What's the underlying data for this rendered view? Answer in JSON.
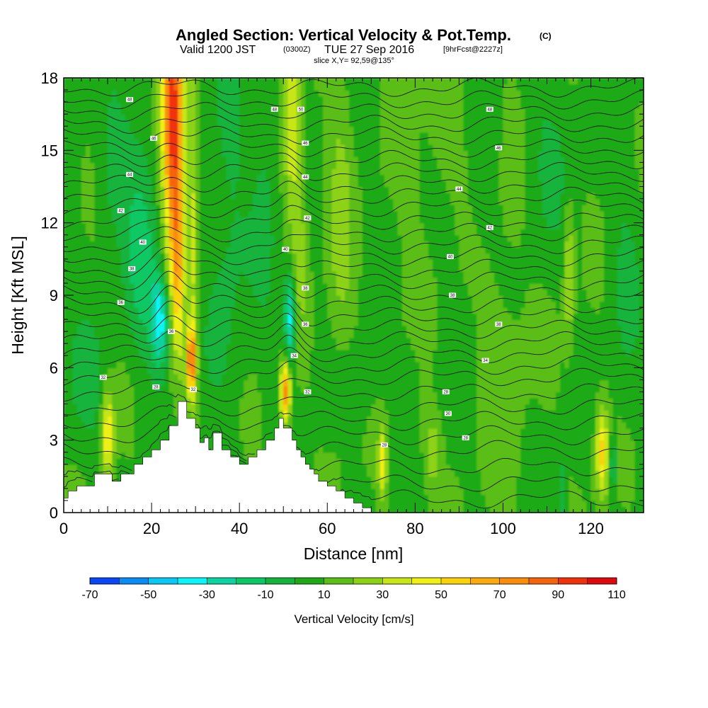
{
  "title": {
    "main": "Angled Section: Vertical Velocity & Pot.Temp.",
    "unit": "(C)",
    "valid_a": "Valid 1200 JST",
    "valid_b": "(0300Z)",
    "valid_c": "TUE 27 Sep 2016",
    "valid_d": "[9hrFcst@2227z]",
    "slice": "slice X,Y= 92,59@135°"
  },
  "colors": {
    "scale": [
      "#0a0af0",
      "#0a46f5",
      "#0a8cf5",
      "#0ac8f5",
      "#0af5f5",
      "#0ad2a0",
      "#0ac864",
      "#14b43c",
      "#1eaa14",
      "#5abe14",
      "#8cd214",
      "#c8e614",
      "#f0f014",
      "#fad20a",
      "#faaa0a",
      "#fa8c0a",
      "#f5640a",
      "#f0320a",
      "#dc0a0a",
      "#be0a3c",
      "#a00a6e",
      "#780a8c"
    ],
    "terrain": "#ffffff"
  },
  "chart_data": {
    "type": "heatmap",
    "title": "Angled Section: Vertical Velocity & Pot.Temp.",
    "xlabel": "Distance [nm]",
    "ylabel": "Height [Kft MSL]",
    "xlim": [
      0,
      132
    ],
    "ylim": [
      0,
      18
    ],
    "xticks": [
      "0",
      "20",
      "40",
      "60",
      "80",
      "100",
      "120"
    ],
    "xtick_values": [
      0,
      20,
      40,
      60,
      80,
      100,
      120
    ],
    "yticks": [
      "0",
      "3",
      "6",
      "9",
      "12",
      "15",
      "18"
    ],
    "ytick_values": [
      0,
      3,
      6,
      9,
      12,
      15,
      18
    ],
    "colorbar": {
      "label": "Vertical Velocity [cm/s]",
      "min": -70,
      "max": 110,
      "step": 10,
      "ticks": [
        "-70",
        "-50",
        "-30",
        "-10",
        "10",
        "30",
        "50",
        "70",
        "90",
        "110"
      ]
    },
    "background_velocity": 8,
    "velocity_features": [
      {
        "x": 24.5,
        "y": 17.5,
        "sx": 1.8,
        "sy": 3.5,
        "v": 70
      },
      {
        "x": 25.5,
        "y": 13.5,
        "sx": 1.5,
        "sy": 3.5,
        "v": 45
      },
      {
        "x": 26.0,
        "y": 9.5,
        "sx": 1.0,
        "sy": 2.5,
        "v": 30
      },
      {
        "x": 29.0,
        "y": 6.3,
        "sx": 0.8,
        "sy": 1.0,
        "v": 70
      },
      {
        "x": 29.5,
        "y": 12.0,
        "sx": 0.8,
        "sy": 5.0,
        "v": 25
      },
      {
        "x": 22.0,
        "y": 8.0,
        "sx": 1.6,
        "sy": 1.4,
        "v": -45
      },
      {
        "x": 18.0,
        "y": 10.0,
        "sx": 2.5,
        "sy": 2.5,
        "v": -20
      },
      {
        "x": 16.0,
        "y": 15.0,
        "sx": 4.0,
        "sy": 3.0,
        "v": -10
      },
      {
        "x": 37.0,
        "y": 12.0,
        "sx": 3.5,
        "sy": 5.0,
        "v": -12
      },
      {
        "x": 10.0,
        "y": 3.2,
        "sx": 1.0,
        "sy": 1.3,
        "v": 45
      },
      {
        "x": 5.0,
        "y": 5.0,
        "sx": 4.0,
        "sy": 2.0,
        "v": -10
      },
      {
        "x": 51.5,
        "y": 8.0,
        "sx": 0.9,
        "sy": 1.4,
        "v": -45
      },
      {
        "x": 50.5,
        "y": 5.0,
        "sx": 0.8,
        "sy": 0.9,
        "v": 70
      },
      {
        "x": 52.0,
        "y": 16.0,
        "sx": 1.3,
        "sy": 3.0,
        "v": 30
      },
      {
        "x": 54.0,
        "y": 11.0,
        "sx": 1.2,
        "sy": 2.5,
        "v": 15
      },
      {
        "x": 46.0,
        "y": 14.0,
        "sx": 2.0,
        "sy": 4.0,
        "v": -10
      },
      {
        "x": 63.0,
        "y": 12.0,
        "sx": 2.0,
        "sy": 5.0,
        "v": 15
      },
      {
        "x": 122.5,
        "y": 2.5,
        "sx": 1.0,
        "sy": 1.3,
        "v": 45
      },
      {
        "x": 125.0,
        "y": 2.0,
        "sx": 0.6,
        "sy": 0.8,
        "v": -25
      },
      {
        "x": 113.5,
        "y": 1.0,
        "sx": 0.6,
        "sy": 0.8,
        "v": -20
      },
      {
        "x": 72.5,
        "y": 2.0,
        "sx": 0.7,
        "sy": 1.0,
        "v": 35
      },
      {
        "x": 84.0,
        "y": 2.5,
        "sx": 1.2,
        "sy": 1.0,
        "v": 20
      },
      {
        "x": 115.0,
        "y": 10.0,
        "sx": 0.8,
        "sy": 2.0,
        "v": 25
      },
      {
        "x": 80.0,
        "y": 9.0,
        "sx": 3.0,
        "sy": 7.0,
        "v": 5
      },
      {
        "x": 100.0,
        "y": 8.0,
        "sx": 4.0,
        "sy": 6.0,
        "v": 8
      },
      {
        "x": 95.0,
        "y": 14.0,
        "sx": 4.0,
        "sy": 3.5,
        "v": -6
      },
      {
        "x": 110.0,
        "y": 15.0,
        "sx": 4.0,
        "sy": 3.0,
        "v": -8
      },
      {
        "x": 128.0,
        "y": 10.0,
        "sx": 2.5,
        "sy": 4.0,
        "v": -8
      },
      {
        "x": 88.0,
        "y": 16.0,
        "sx": 3.5,
        "sy": 2.0,
        "v": 10
      },
      {
        "x": 66.0,
        "y": 5.0,
        "sx": 3.0,
        "sy": 1.2,
        "v": -8
      },
      {
        "x": 78.0,
        "y": 6.0,
        "sx": 4.0,
        "sy": 1.2,
        "v": -8
      },
      {
        "x": 10.0,
        "y": 13.5,
        "sx": 2.0,
        "sy": 2.0,
        "v": -8
      }
    ],
    "terrain_profile": {
      "x": [
        0,
        1,
        1,
        3,
        3,
        7,
        7,
        11,
        11,
        13,
        13,
        16,
        16,
        18,
        18,
        20,
        20,
        22,
        22,
        24,
        24,
        26,
        26,
        28,
        28,
        30,
        30,
        31,
        31,
        32,
        32,
        33,
        33,
        34,
        34,
        36,
        36,
        38,
        38,
        40,
        40,
        42,
        42,
        44,
        44,
        46,
        46,
        48,
        48,
        49,
        49,
        50,
        50,
        52,
        52,
        53,
        53,
        54,
        54,
        55,
        55,
        56,
        56,
        57,
        57,
        58,
        58,
        60,
        60,
        62,
        62,
        64,
        64,
        66,
        66,
        68,
        68,
        70,
        70,
        71,
        71,
        132
      ],
      "y": [
        0.6,
        0.6,
        0.9,
        0.9,
        1.1,
        1.1,
        1.6,
        1.6,
        1.3,
        1.3,
        1.6,
        1.6,
        2.0,
        2.0,
        2.3,
        2.3,
        2.6,
        2.6,
        3.0,
        3.0,
        3.6,
        3.6,
        4.6,
        4.6,
        3.9,
        3.9,
        3.5,
        3.5,
        2.9,
        2.9,
        3.1,
        3.1,
        2.6,
        2.6,
        3.3,
        3.3,
        2.6,
        2.6,
        2.3,
        2.3,
        2.0,
        2.0,
        2.3,
        2.3,
        2.6,
        2.6,
        3.0,
        3.0,
        3.5,
        3.5,
        3.9,
        3.9,
        3.5,
        3.5,
        3.0,
        3.0,
        2.6,
        2.6,
        2.3,
        2.3,
        2.0,
        2.0,
        1.8,
        1.8,
        1.6,
        1.6,
        1.3,
        1.3,
        1.1,
        1.1,
        0.9,
        0.9,
        0.6,
        0.6,
        0.4,
        0.4,
        0.2,
        0.2,
        0.0,
        0.0,
        0.0,
        0.0
      ]
    },
    "theta_contours": {
      "base_levels_kft": [
        0.5,
        1.2,
        1.9,
        2.6,
        3.2,
        3.8,
        4.4,
        5.0,
        5.6,
        6.1,
        6.6,
        7.1,
        7.6,
        8.1,
        8.6,
        9.1,
        9.6,
        10.1,
        10.6,
        11.1,
        11.6,
        12.1,
        12.6,
        13.1,
        13.6,
        14.1,
        14.6,
        15.1,
        15.6,
        16.1,
        16.6,
        17.1,
        17.6
      ],
      "labels": [
        {
          "x": 21,
          "y": 5.2,
          "text": "28"
        },
        {
          "x": 9,
          "y": 5.6,
          "text": "32"
        },
        {
          "x": 29.5,
          "y": 5.1,
          "text": "32"
        },
        {
          "x": 55.5,
          "y": 5.0,
          "text": "32"
        },
        {
          "x": 73,
          "y": 2.8,
          "text": "28"
        },
        {
          "x": 87,
          "y": 5.0,
          "text": "28"
        },
        {
          "x": 87.5,
          "y": 4.1,
          "text": "30"
        },
        {
          "x": 91.5,
          "y": 3.1,
          "text": "28"
        },
        {
          "x": 96,
          "y": 6.3,
          "text": "34"
        },
        {
          "x": 99,
          "y": 7.8,
          "text": "38"
        },
        {
          "x": 88.5,
          "y": 9.0,
          "text": "38"
        },
        {
          "x": 88,
          "y": 10.6,
          "text": "40"
        },
        {
          "x": 97,
          "y": 11.8,
          "text": "42"
        },
        {
          "x": 90,
          "y": 13.4,
          "text": "44"
        },
        {
          "x": 99,
          "y": 15.1,
          "text": "46"
        },
        {
          "x": 97,
          "y": 16.7,
          "text": "48"
        },
        {
          "x": 13,
          "y": 12.5,
          "text": "42"
        },
        {
          "x": 15,
          "y": 14.0,
          "text": "44"
        },
        {
          "x": 15,
          "y": 17.1,
          "text": "48"
        },
        {
          "x": 20.5,
          "y": 15.5,
          "text": "46"
        },
        {
          "x": 18,
          "y": 11.2,
          "text": "40"
        },
        {
          "x": 15.5,
          "y": 10.1,
          "text": "38"
        },
        {
          "x": 13,
          "y": 8.7,
          "text": "36"
        },
        {
          "x": 24.5,
          "y": 7.5,
          "text": "36"
        },
        {
          "x": 50.5,
          "y": 10.9,
          "text": "40"
        },
        {
          "x": 55,
          "y": 9.3,
          "text": "38"
        },
        {
          "x": 55,
          "y": 7.8,
          "text": "36"
        },
        {
          "x": 52.5,
          "y": 6.5,
          "text": "34"
        },
        {
          "x": 55.5,
          "y": 12.2,
          "text": "42"
        },
        {
          "x": 55,
          "y": 13.9,
          "text": "44"
        },
        {
          "x": 55,
          "y": 15.3,
          "text": "46"
        },
        {
          "x": 48,
          "y": 16.7,
          "text": "48"
        },
        {
          "x": 54,
          "y": 16.7,
          "text": "50"
        }
      ]
    }
  }
}
